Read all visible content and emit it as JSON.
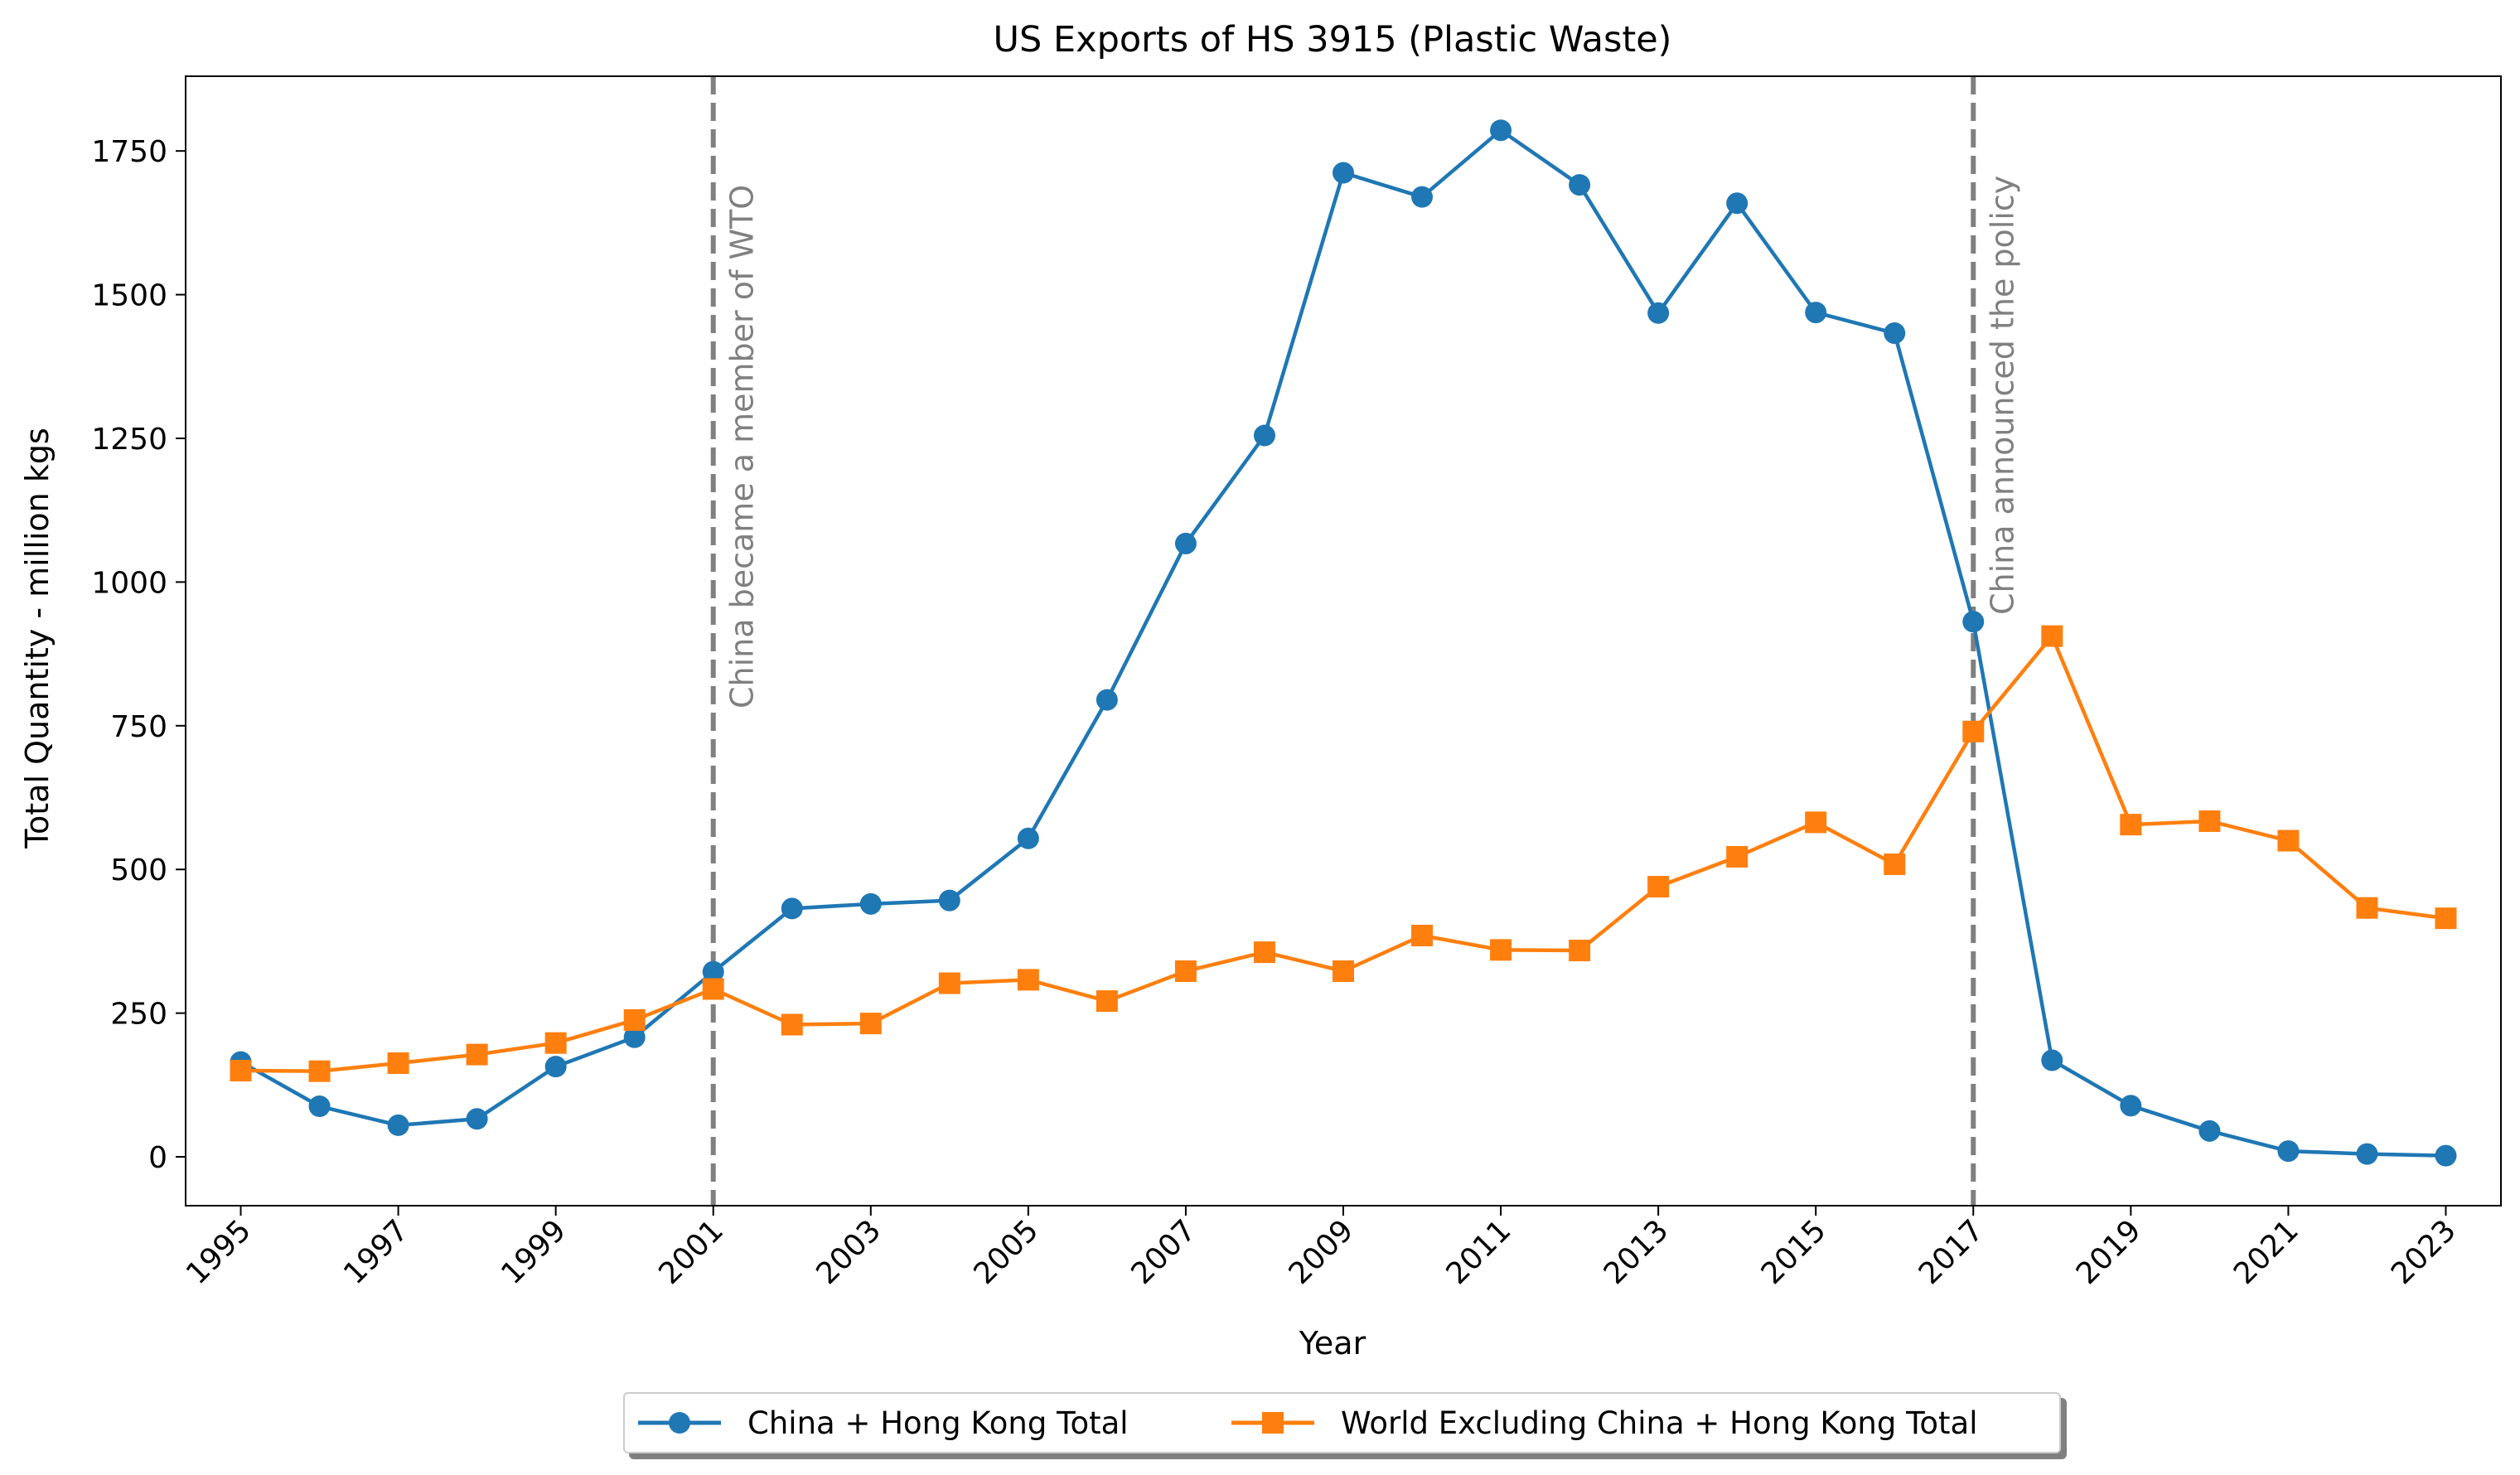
{
  "chart_data": {
    "type": "line",
    "title": "US Exports of HS 3915 (Plastic Waste)",
    "xlabel": "Year",
    "ylabel": "Total Quantity - million kgs",
    "x": [
      1995,
      1996,
      1997,
      1998,
      1999,
      2000,
      2001,
      2002,
      2003,
      2004,
      2005,
      2006,
      2007,
      2008,
      2009,
      2010,
      2011,
      2012,
      2013,
      2014,
      2015,
      2016,
      2017,
      2018,
      2019,
      2020,
      2021,
      2022,
      2023
    ],
    "xticks": [
      "1995",
      "1997",
      "1999",
      "2001",
      "2003",
      "2005",
      "2007",
      "2009",
      "2011",
      "2013",
      "2015",
      "2017",
      "2019",
      "2021",
      "2023"
    ],
    "yticks": [
      0,
      250,
      500,
      750,
      1000,
      1250,
      1500,
      1750
    ],
    "ylim": [
      -85,
      1880
    ],
    "xlim": [
      1994.3,
      2023.7
    ],
    "grid": false,
    "series": [
      {
        "name": "China + Hong Kong Total",
        "color": "#1f77b4",
        "marker": "circle",
        "values": [
          165,
          88,
          55,
          66,
          157,
          208,
          322,
          432,
          440,
          446,
          554,
          795,
          1067,
          1255,
          1712,
          1670,
          1786,
          1691,
          1468,
          1659,
          1469,
          1433,
          931,
          168,
          89,
          45,
          10,
          5,
          2
        ]
      },
      {
        "name": "World Excluding China + Hong Kong Total",
        "color": "#ff7f0e",
        "marker": "square",
        "values": [
          150,
          149,
          163,
          178,
          198,
          238,
          292,
          230,
          232,
          302,
          308,
          271,
          323,
          356,
          323,
          385,
          360,
          359,
          470,
          522,
          582,
          509,
          740,
          906,
          578,
          584,
          550,
          433,
          415
        ]
      }
    ],
    "annotations": [
      {
        "x": 2001,
        "text": "China became a member of WTO",
        "color": "#808080"
      },
      {
        "x": 2017,
        "text": "China announced the policy",
        "color": "#808080"
      }
    ],
    "legend_position": "bottom-center"
  }
}
